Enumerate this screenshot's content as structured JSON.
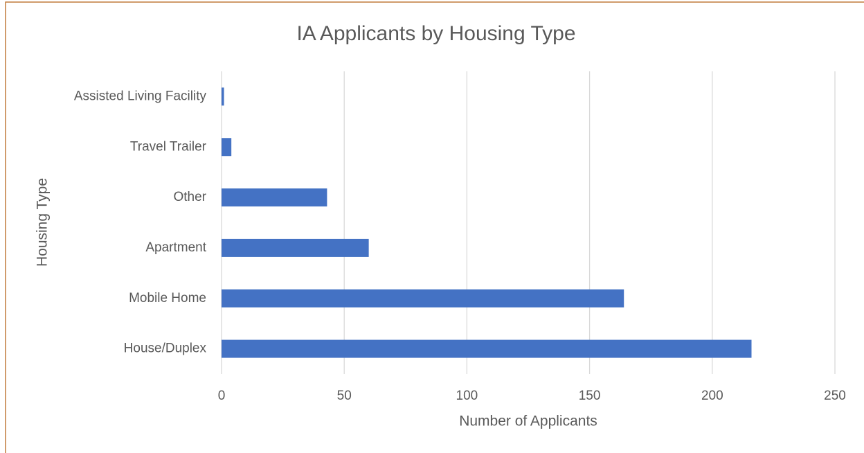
{
  "chart_data": {
    "type": "bar",
    "orientation": "horizontal",
    "title": "IA Applicants by Housing Type",
    "x_label": "Number of Applicants",
    "y_label": "Housing Type",
    "categories": [
      "House/Duplex",
      "Mobile Home",
      "Apartment",
      "Other",
      "Travel Trailer",
      "Assisted Living Facility"
    ],
    "values": [
      216,
      164,
      60,
      43,
      4,
      1
    ],
    "color": "#4472c4",
    "xlim": [
      0,
      250
    ],
    "xticks": [
      0,
      50,
      100,
      150,
      200,
      250
    ],
    "grid": true
  }
}
